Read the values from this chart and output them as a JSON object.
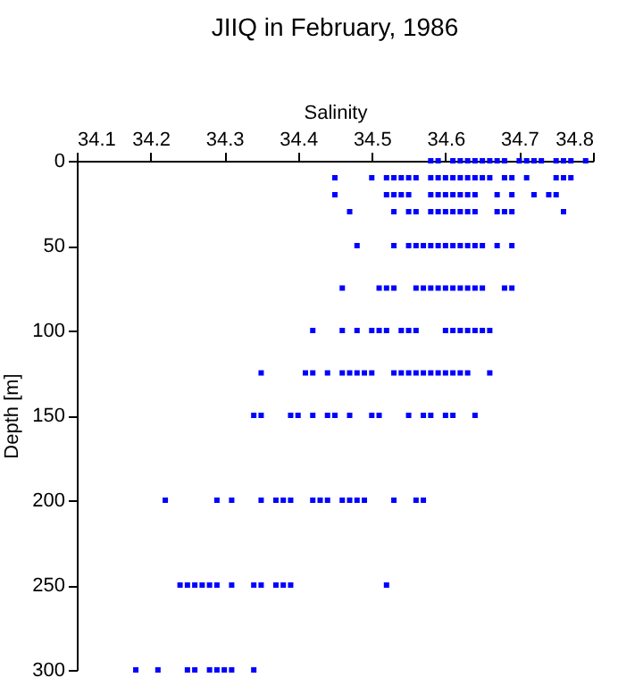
{
  "chart_data": {
    "type": "scatter",
    "title": "JIIQ in February, 1986",
    "xlabel": "Salinity",
    "ylabel": "Depth [m]",
    "xlim": [
      34.1,
      34.8
    ],
    "xticks": [
      34.1,
      34.2,
      34.3,
      34.4,
      34.5,
      34.6,
      34.7,
      34.8
    ],
    "ylim": [
      300,
      0
    ],
    "yticks": [
      0,
      50,
      100,
      150,
      200,
      250,
      300
    ],
    "marker": "square",
    "grid": false,
    "series": [
      {
        "color": "#0000ff",
        "x": [
          34.58,
          34.59,
          34.61,
          34.62,
          34.63,
          34.64,
          34.65,
          34.66,
          34.67,
          34.68,
          34.7,
          34.71,
          34.72,
          34.73,
          34.75,
          34.76,
          34.77,
          34.79,
          34.45,
          34.5,
          34.52,
          34.53,
          34.54,
          34.55,
          34.56,
          34.58,
          34.59,
          34.6,
          34.61,
          34.62,
          34.63,
          34.64,
          34.65,
          34.66,
          34.68,
          34.69,
          34.71,
          34.75,
          34.76,
          34.77,
          34.45,
          34.52,
          34.53,
          34.54,
          34.55,
          34.58,
          34.59,
          34.6,
          34.61,
          34.62,
          34.63,
          34.64,
          34.67,
          34.69,
          34.72,
          34.74,
          34.75,
          34.47,
          34.53,
          34.55,
          34.56,
          34.58,
          34.59,
          34.6,
          34.61,
          34.62,
          34.63,
          34.64,
          34.67,
          34.68,
          34.69,
          34.76,
          34.48,
          34.53,
          34.55,
          34.56,
          34.57,
          34.58,
          34.59,
          34.6,
          34.61,
          34.62,
          34.63,
          34.64,
          34.65,
          34.67,
          34.69,
          34.46,
          34.51,
          34.52,
          34.53,
          34.56,
          34.57,
          34.58,
          34.59,
          34.6,
          34.61,
          34.62,
          34.63,
          34.64,
          34.65,
          34.68,
          34.69,
          34.42,
          34.46,
          34.48,
          34.5,
          34.51,
          34.52,
          34.54,
          34.55,
          34.56,
          34.6,
          34.61,
          34.62,
          34.63,
          34.64,
          34.65,
          34.66,
          34.35,
          34.41,
          34.42,
          34.44,
          34.46,
          34.47,
          34.48,
          34.49,
          34.5,
          34.53,
          34.54,
          34.55,
          34.56,
          34.57,
          34.58,
          34.59,
          34.6,
          34.61,
          34.62,
          34.63,
          34.66,
          34.34,
          34.35,
          34.39,
          34.4,
          34.42,
          34.44,
          34.45,
          34.47,
          34.5,
          34.51,
          34.55,
          34.57,
          34.58,
          34.6,
          34.61,
          34.64,
          34.22,
          34.29,
          34.31,
          34.35,
          34.37,
          34.38,
          34.39,
          34.42,
          34.43,
          34.44,
          34.46,
          34.47,
          34.48,
          34.49,
          34.53,
          34.56,
          34.57,
          34.24,
          34.25,
          34.26,
          34.27,
          34.28,
          34.29,
          34.31,
          34.34,
          34.35,
          34.37,
          34.38,
          34.39,
          34.52,
          34.18,
          34.21,
          34.25,
          34.26,
          34.28,
          34.29,
          34.3,
          34.31,
          34.34
        ],
        "values": [
          0,
          0,
          0,
          0,
          0,
          0,
          0,
          0,
          0,
          0,
          0,
          0,
          0,
          0,
          0,
          0,
          0,
          0,
          10,
          10,
          10,
          10,
          10,
          10,
          10,
          10,
          10,
          10,
          10,
          10,
          10,
          10,
          10,
          10,
          10,
          10,
          10,
          10,
          10,
          10,
          20,
          20,
          20,
          20,
          20,
          20,
          20,
          20,
          20,
          20,
          20,
          20,
          20,
          20,
          20,
          20,
          20,
          30,
          30,
          30,
          30,
          30,
          30,
          30,
          30,
          30,
          30,
          30,
          30,
          30,
          30,
          30,
          50,
          50,
          50,
          50,
          50,
          50,
          50,
          50,
          50,
          50,
          50,
          50,
          50,
          50,
          50,
          75,
          75,
          75,
          75,
          75,
          75,
          75,
          75,
          75,
          75,
          75,
          75,
          75,
          75,
          75,
          75,
          100,
          100,
          100,
          100,
          100,
          100,
          100,
          100,
          100,
          100,
          100,
          100,
          100,
          100,
          100,
          100,
          125,
          125,
          125,
          125,
          125,
          125,
          125,
          125,
          125,
          125,
          125,
          125,
          125,
          125,
          125,
          125,
          125,
          125,
          125,
          125,
          125,
          150,
          150,
          150,
          150,
          150,
          150,
          150,
          150,
          150,
          150,
          150,
          150,
          150,
          150,
          150,
          150,
          200,
          200,
          200,
          200,
          200,
          200,
          200,
          200,
          200,
          200,
          200,
          200,
          200,
          200,
          200,
          200,
          200,
          250,
          250,
          250,
          250,
          250,
          250,
          250,
          250,
          250,
          250,
          250,
          250,
          250,
          300,
          300,
          300,
          300,
          300,
          300,
          300,
          300,
          300
        ]
      }
    ]
  }
}
